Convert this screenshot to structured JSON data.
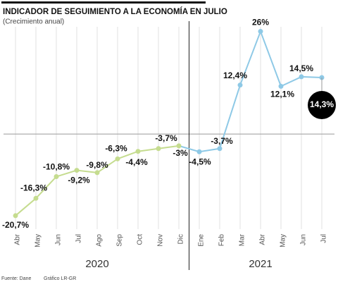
{
  "chart_data": {
    "type": "line",
    "title": "INDICADOR DE SEGUIMIENTO A LA ECONOMÍA EN JULIO",
    "subtitle": "(Crecimiento anual)",
    "categories": [
      "Abr",
      "May",
      "Jun",
      "Jul",
      "Ago",
      "Sep",
      "Oct",
      "Nov",
      "Dic",
      "Ene",
      "Feb",
      "Mar",
      "Abr",
      "May",
      "Jun",
      "Jul"
    ],
    "years": [
      "2020",
      "2021"
    ],
    "values": [
      -20.7,
      -16.3,
      -10.8,
      -9.2,
      -9.8,
      -6.3,
      -4.4,
      -3.7,
      -3,
      -4.5,
      -3.7,
      12.4,
      26,
      12.1,
      14.5,
      14.3
    ],
    "value_labels": [
      "-20,7%",
      "-16,3%",
      "-10,8%",
      "-9,2%",
      "-9,8%",
      "-6,3%",
      "-4,4%",
      "-3,7%",
      "-3%",
      "-4,5%",
      "-3,7%",
      "12,4%",
      "26%",
      "12,1%",
      "14,5%",
      "14,3%"
    ],
    "colors": [
      "#c5dc8f",
      "#c5dc8f",
      "#c5dc8f",
      "#c5dc8f",
      "#c5dc8f",
      "#c5dc8f",
      "#c5dc8f",
      "#c5dc8f",
      "#c5dc8f",
      "#8ec9e6",
      "#8ec9e6",
      "#8ec9e6",
      "#8ec9e6",
      "#8ec9e6",
      "#8ec9e6",
      "#8ec9e6"
    ],
    "ylim": [
      -25,
      28.6
    ],
    "grid": true,
    "source": "Fuente: Dane",
    "credit": "Gráfico LR-GR"
  }
}
